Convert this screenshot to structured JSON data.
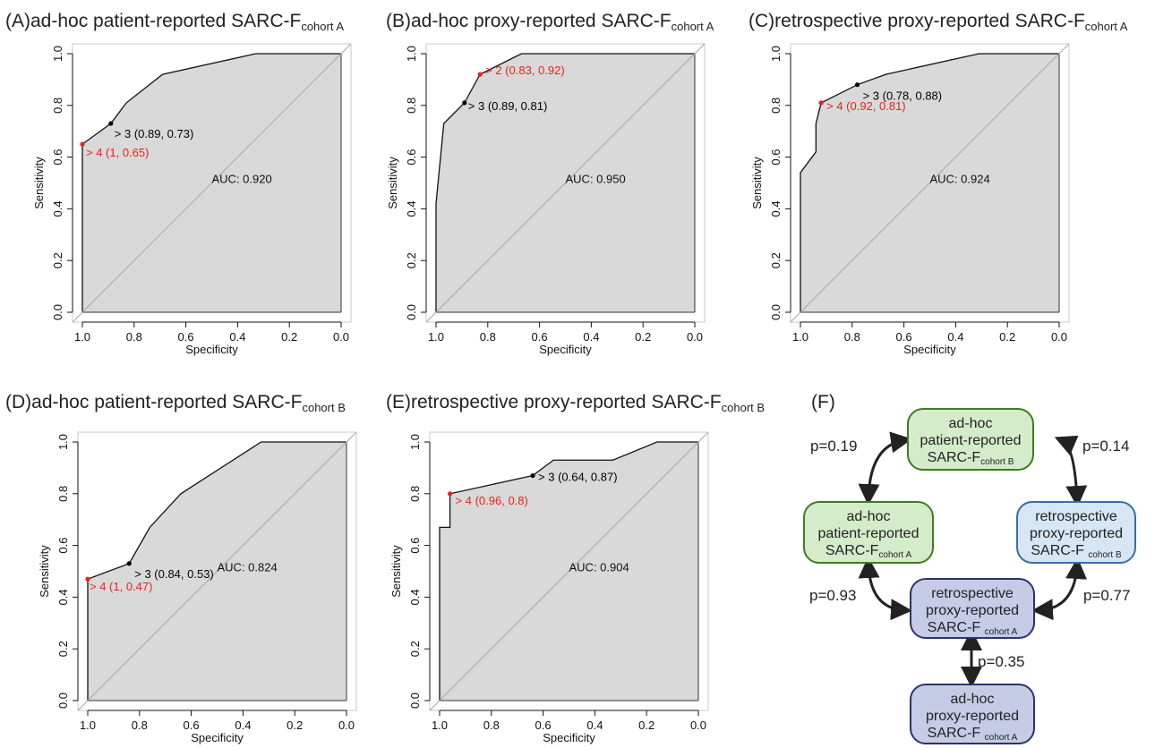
{
  "panels": [
    {
      "id": "A",
      "letter": "(A)",
      "title": "ad-hoc patient-reported SARC-F",
      "sub": "cohort A"
    },
    {
      "id": "B",
      "letter": "(B)",
      "title": "ad-hoc proxy-reported SARC-F",
      "sub": "cohort A"
    },
    {
      "id": "C",
      "letter": "(C)",
      "title": "retrospective proxy-reported SARC-F",
      "sub": "cohort A"
    },
    {
      "id": "D",
      "letter": "(D)",
      "title": "ad-hoc patient-reported SARC-F",
      "sub": "cohort B"
    },
    {
      "id": "E",
      "letter": "(E)",
      "title": "retrospective proxy-reported SARC-F",
      "sub": "cohort B"
    },
    {
      "id": "F",
      "letter": "(F)"
    }
  ],
  "chart_data": [
    {
      "id": "A",
      "type": "line",
      "xlabel": "Specificity",
      "ylabel": "Sensitivity",
      "xlim": [
        1.0,
        0.0
      ],
      "ylim": [
        0.0,
        1.0
      ],
      "x_ticks": [
        "1.0",
        "0.8",
        "0.6",
        "0.4",
        "0.2",
        "0.0"
      ],
      "y_ticks": [
        "0.0",
        "0.2",
        "0.4",
        "0.6",
        "0.8",
        "1.0"
      ],
      "auc_label": "AUC: 0.920",
      "roc": [
        [
          1,
          0
        ],
        [
          1,
          0.65
        ],
        [
          0.89,
          0.73
        ],
        [
          0.83,
          0.81
        ],
        [
          0.69,
          0.92
        ],
        [
          0.33,
          1.0
        ],
        [
          0,
          1.0
        ]
      ],
      "points": [
        {
          "spec": 0.89,
          "sens": 0.73,
          "label": "> 3 (0.89, 0.73)",
          "color": "#000000"
        },
        {
          "spec": 1.0,
          "sens": 0.65,
          "label": "> 4 (1, 0.65)",
          "color": "#e8231a"
        }
      ]
    },
    {
      "id": "B",
      "type": "line",
      "xlabel": "Specificity",
      "ylabel": "Sensitivity",
      "xlim": [
        1.0,
        0.0
      ],
      "ylim": [
        0.0,
        1.0
      ],
      "x_ticks": [
        "1.0",
        "0.8",
        "0.6",
        "0.4",
        "0.2",
        "0.0"
      ],
      "y_ticks": [
        "0.0",
        "0.2",
        "0.4",
        "0.6",
        "0.8",
        "1.0"
      ],
      "auc_label": "AUC: 0.950",
      "roc": [
        [
          1,
          0
        ],
        [
          1,
          0.42
        ],
        [
          0.97,
          0.73
        ],
        [
          0.89,
          0.81
        ],
        [
          0.83,
          0.92
        ],
        [
          0.67,
          1.0
        ],
        [
          0,
          1.0
        ]
      ],
      "points": [
        {
          "spec": 0.83,
          "sens": 0.92,
          "label": "> 2 (0.83, 0.92)",
          "color": "#e8231a"
        },
        {
          "spec": 0.89,
          "sens": 0.81,
          "label": "> 3 (0.89, 0.81)",
          "color": "#000000"
        }
      ]
    },
    {
      "id": "C",
      "type": "line",
      "xlabel": "Specificity",
      "ylabel": "Sensitivity",
      "xlim": [
        1.0,
        0.0
      ],
      "ylim": [
        0.0,
        1.0
      ],
      "x_ticks": [
        "1.0",
        "0.8",
        "0.6",
        "0.4",
        "0.2",
        "0.0"
      ],
      "y_ticks": [
        "0.0",
        "0.2",
        "0.4",
        "0.6",
        "0.8",
        "1.0"
      ],
      "auc_label": "AUC: 0.924",
      "roc": [
        [
          1,
          0
        ],
        [
          1,
          0.54
        ],
        [
          0.94,
          0.62
        ],
        [
          0.94,
          0.73
        ],
        [
          0.92,
          0.81
        ],
        [
          0.78,
          0.88
        ],
        [
          0.67,
          0.92
        ],
        [
          0.31,
          1.0
        ],
        [
          0,
          1.0
        ]
      ],
      "points": [
        {
          "spec": 0.78,
          "sens": 0.88,
          "label": "> 3 (0.78, 0.88)",
          "color": "#000000"
        },
        {
          "spec": 0.92,
          "sens": 0.81,
          "label": "> 4 (0.92, 0.81)",
          "color": "#e8231a"
        }
      ]
    },
    {
      "id": "D",
      "type": "line",
      "xlabel": "Specificity",
      "ylabel": "Sensitivity",
      "xlim": [
        1.0,
        0.0
      ],
      "ylim": [
        0.0,
        1.0
      ],
      "x_ticks": [
        "1.0",
        "0.8",
        "0.6",
        "0.4",
        "0.2",
        "0.0"
      ],
      "y_ticks": [
        "0.0",
        "0.2",
        "0.4",
        "0.6",
        "0.8",
        "1.0"
      ],
      "auc_label": "AUC: 0.824",
      "roc": [
        [
          1,
          0
        ],
        [
          1,
          0.47
        ],
        [
          0.84,
          0.53
        ],
        [
          0.76,
          0.67
        ],
        [
          0.64,
          0.8
        ],
        [
          0.33,
          1.0
        ],
        [
          0,
          1.0
        ]
      ],
      "points": [
        {
          "spec": 0.84,
          "sens": 0.53,
          "label": "> 3 (0.84, 0.53)",
          "color": "#000000"
        },
        {
          "spec": 1.0,
          "sens": 0.47,
          "label": "> 4 (1, 0.47)",
          "color": "#e8231a"
        }
      ]
    },
    {
      "id": "E",
      "type": "line",
      "xlabel": "Specificity",
      "ylabel": "Sensitivity",
      "xlim": [
        1.0,
        0.0
      ],
      "ylim": [
        0.0,
        1.0
      ],
      "x_ticks": [
        "1.0",
        "0.8",
        "0.6",
        "0.4",
        "0.2",
        "0.0"
      ],
      "y_ticks": [
        "0.0",
        "0.2",
        "0.4",
        "0.6",
        "0.8",
        "1.0"
      ],
      "auc_label": "AUC: 0.904",
      "roc": [
        [
          1,
          0
        ],
        [
          1,
          0.67
        ],
        [
          0.96,
          0.67
        ],
        [
          0.96,
          0.8
        ],
        [
          0.64,
          0.87
        ],
        [
          0.56,
          0.93
        ],
        [
          0.33,
          0.93
        ],
        [
          0.16,
          1.0
        ],
        [
          0,
          1.0
        ]
      ],
      "points": [
        {
          "spec": 0.64,
          "sens": 0.87,
          "label": "> 3 (0.64, 0.87)",
          "color": "#000000"
        },
        {
          "spec": 0.96,
          "sens": 0.8,
          "label": "> 4 (0.96, 0.8)",
          "color": "#e8231a"
        }
      ]
    }
  ],
  "diagram": {
    "nodes": [
      {
        "id": "pat_b",
        "lines": [
          "ad-hoc",
          "patient-reported"
        ],
        "last": "SARC-F",
        "sub": "cohort B",
        "fill": "#d5ecca",
        "stroke": "#3e7b22"
      },
      {
        "id": "pat_a",
        "lines": [
          "ad-hoc",
          "patient-reported"
        ],
        "last": "SARC-F",
        "sub": "cohort A",
        "fill": "#d5ecca",
        "stroke": "#3e7b22"
      },
      {
        "id": "retro_b",
        "lines": [
          "retrospective",
          "proxy-reported"
        ],
        "last": "SARC-F ",
        "sub": "cohort B",
        "fill": "#d6e6f5",
        "stroke": "#3a6ea5"
      },
      {
        "id": "retro_a",
        "lines": [
          "retrospective",
          "proxy-reported"
        ],
        "last": "SARC-F ",
        "sub": "cohort A",
        "fill": "#c6cbe6",
        "stroke": "#2a3568"
      },
      {
        "id": "proxy_a",
        "lines": [
          "ad-hoc",
          "proxy-reported"
        ],
        "last": "SARC-F ",
        "sub": "cohort A",
        "fill": "#c6cbe6",
        "stroke": "#2a3568"
      }
    ],
    "pvalues": {
      "pat_a_pat_b": "p=0.19",
      "pat_b_retro_b": "p=0.14",
      "pat_a_retro_a": "p=0.93",
      "retro_b_retro_a": "p=0.77",
      "retro_a_proxy_a": "p=0.35"
    }
  }
}
